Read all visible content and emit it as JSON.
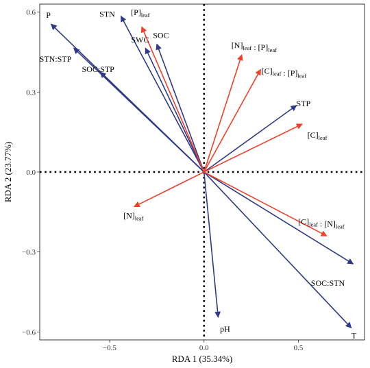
{
  "chart_data": {
    "type": "biplot",
    "xlabel": "RDA 1 (35.34%)",
    "ylabel": "RDA 2 (23.77%)",
    "xlim": [
      -0.87,
      0.85
    ],
    "ylim": [
      -0.63,
      0.63
    ],
    "x_ticks": [
      -0.5,
      0.0,
      0.5
    ],
    "x_tick_labels": [
      "−0.5",
      "0.0",
      "0.5"
    ],
    "y_ticks": [
      -0.6,
      -0.3,
      0.0,
      0.3,
      0.6
    ],
    "y_tick_labels": [
      "−0.6",
      "−0.3",
      "0.0",
      "0.3",
      "0.6"
    ],
    "grid": false,
    "reference_lines": [
      {
        "axis": "x",
        "value": 0.0,
        "style": "dotted"
      },
      {
        "axis": "y",
        "value": 0.0,
        "style": "dotted"
      }
    ],
    "colors": {
      "soil": "#2e3a87",
      "leaf": "#f0402a"
    },
    "soil_vectors": [
      {
        "label": "P",
        "x": -0.81,
        "y": 0.555
      },
      {
        "label": "STN",
        "x": -0.44,
        "y": 0.585
      },
      {
        "label": "STN:STP",
        "x": -0.69,
        "y": 0.465
      },
      {
        "label": "SOC:STP",
        "x": -0.55,
        "y": 0.375
      },
      {
        "label": "SWC",
        "x": -0.31,
        "y": 0.465
      },
      {
        "label": "SOC",
        "x": -0.25,
        "y": 0.48
      },
      {
        "label": "STP",
        "x": 0.49,
        "y": 0.25
      },
      {
        "label": "SOC:STN",
        "x": 0.79,
        "y": -0.345
      },
      {
        "label": "pH",
        "x": 0.075,
        "y": -0.545
      },
      {
        "label": "T",
        "x": 0.78,
        "y": -0.585
      }
    ],
    "leaf_vectors": [
      {
        "label": "[P]leaf",
        "base": "[P]",
        "sub": "leaf",
        "x": -0.33,
        "y": 0.545
      },
      {
        "label": "[N]leaf : [P]leaf",
        "parts": [
          [
            "[N]",
            "leaf"
          ],
          [
            " : [P]",
            "leaf"
          ]
        ],
        "x": 0.2,
        "y": 0.44
      },
      {
        "label": "[C]leaf : [P]leaf",
        "parts": [
          [
            "[C]",
            "leaf"
          ],
          [
            " : [P]",
            "leaf"
          ]
        ],
        "x": 0.3,
        "y": 0.385
      },
      {
        "label": "[C]leaf",
        "base": "[C]",
        "sub": "leaf",
        "x": 0.52,
        "y": 0.18
      },
      {
        "label": "[N]leaf",
        "base": "[N]",
        "sub": "leaf",
        "x": -0.37,
        "y": -0.13
      },
      {
        "label": "[C]leaf : [N]leaf",
        "parts": [
          [
            "[C]",
            "leaf"
          ],
          [
            " : [N]",
            "leaf"
          ]
        ],
        "x": 0.65,
        "y": -0.24
      }
    ]
  }
}
